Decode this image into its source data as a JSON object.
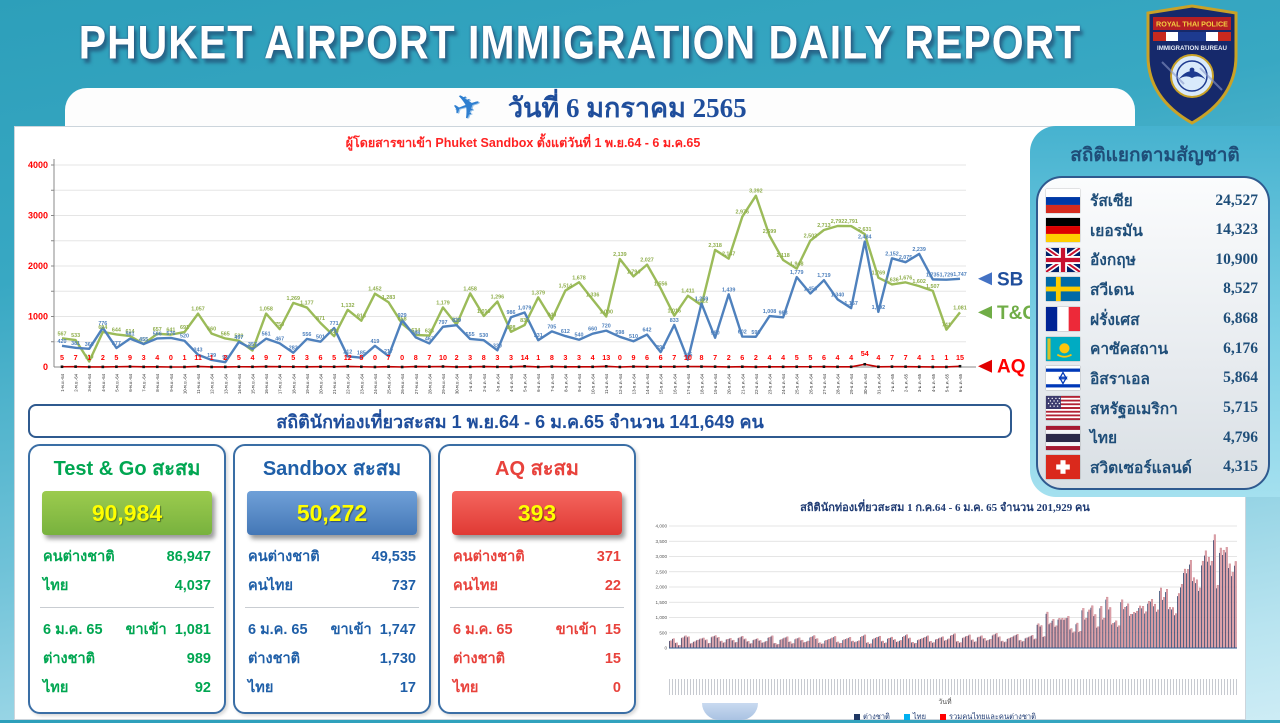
{
  "header": {
    "title": "PHUKET AIRPORT IMMIGRATION DAILY REPORT",
    "badge": {
      "line1": "ROYAL THAI POLICE",
      "line2": "IMMIGRATION BUREAU"
    }
  },
  "date_banner": {
    "text": "วันที่ 6 มกราคม 2565"
  },
  "chart_data": [
    {
      "type": "line",
      "title": "ผู้โดยสารขาเข้า Phuket Sandbox ตั้งแต่วันที่ 1 พ.ย.64 - 6 ม.ค.65",
      "ylim": [
        0,
        4000
      ],
      "yticks": [
        0,
        1000,
        2000,
        3000,
        4000
      ],
      "grid": true,
      "legend_position": "right",
      "x": [
        "1-พ.ย.-64",
        "2-พ.ย.-64",
        "3-พ.ย.-64",
        "4-พ.ย.-64",
        "5-พ.ย.-64",
        "6-พ.ย.-64",
        "7-พ.ย.-64",
        "8-พ.ย.-64",
        "9-พ.ย.-64",
        "10-พ.ย.-64",
        "11-พ.ย.-64",
        "12-พ.ย.-64",
        "13-พ.ย.-64",
        "14-พ.ย.-64",
        "15-พ.ย.-64",
        "16-พ.ย.-64",
        "17-พ.ย.-64",
        "18-พ.ย.-64",
        "19-พ.ย.-64",
        "20-พ.ย.-64",
        "21-พ.ย.-64",
        "22-พ.ย.-64",
        "23-พ.ย.-64",
        "24-พ.ย.-64",
        "25-พ.ย.-64",
        "26-พ.ย.-64",
        "27-พ.ย.-64",
        "28-พ.ย.-64",
        "29-พ.ย.-64",
        "30-พ.ย.-64",
        "1-ธ.ค.-64",
        "2-ธ.ค.-64",
        "3-ธ.ค.-64",
        "4-ธ.ค.-64",
        "5-ธ.ค.-64",
        "6-ธ.ค.-64",
        "7-ธ.ค.-64",
        "8-ธ.ค.-64",
        "9-ธ.ค.-64",
        "10-ธ.ค.-64",
        "11-ธ.ค.-64",
        "12-ธ.ค.-64",
        "13-ธ.ค.-64",
        "14-ธ.ค.-64",
        "15-ธ.ค.-64",
        "16-ธ.ค.-64",
        "17-ธ.ค.-64",
        "18-ธ.ค.-64",
        "19-ธ.ค.-64",
        "20-ธ.ค.-64",
        "21-ธ.ค.-64",
        "22-ธ.ค.-64",
        "23-ธ.ค.-64",
        "24-ธ.ค.-64",
        "25-ธ.ค.-64",
        "26-ธ.ค.-64",
        "27-ธ.ค.-64",
        "28-ธ.ค.-64",
        "29-ธ.ค.-64",
        "30-ธ.ค.-64",
        "31-ธ.ค.-64",
        "1-ม.ค.-65",
        "2-ม.ค.-65",
        "3-ม.ค.-65",
        "4-ม.ค.-65",
        "5-ม.ค.-65",
        "6-ม.ค.-65"
      ],
      "series": [
        {
          "name": "T&G",
          "color": "#9BBB59",
          "label_color": "#8fae4c",
          "values": [
            567,
            533,
            110,
            694,
            644,
            614,
            455,
            657,
            641,
            691,
            1057,
            660,
            565,
            520,
            326,
            1058,
            750,
            1269,
            1177,
            871,
            610,
            1132,
            916,
            1452,
            1283,
            858,
            634,
            623,
            1179,
            839,
            1458,
            1010,
            1296,
            698,
            830,
            1379,
            940,
            1514,
            1678,
            1336,
            1000,
            2139,
            1794,
            2027,
            1556,
            1016,
            1411,
            1222,
            2318,
            2147,
            2976,
            3392,
            2599,
            2118,
            1948,
            2502,
            2713,
            2792,
            2791,
            2631,
            1769,
            1636,
            1676,
            1602,
            1507,
            741,
            1081
          ]
        },
        {
          "name": "SB",
          "color": "#4F81BD",
          "label_color": "#4F81BD",
          "values": [
            420,
            381,
            360,
            776,
            377,
            561,
            455,
            566,
            576,
            520,
            243,
            139,
            96,
            497,
            357,
            561,
            467,
            283,
            556,
            501,
            771,
            212,
            185,
            419,
            217,
            929,
            586,
            467,
            797,
            829,
            555,
            530,
            330,
            986,
            1079,
            531,
            705,
            612,
            540,
            660,
            720,
            598,
            510,
            642,
            295,
            833,
            145,
            1259,
            580,
            1439,
            602,
            599,
            1008,
            983,
            1779,
            1456,
            1719,
            1340,
            1167,
            2484,
            1092,
            2152,
            2075,
            2239,
            1735,
            1729,
            1747
          ]
        },
        {
          "name": "AQ",
          "color": "#C00000",
          "label_color": "#FF0000",
          "values": [
            5,
            7,
            1,
            2,
            5,
            9,
            3,
            4,
            0,
            1,
            11,
            1,
            2,
            5,
            4,
            9,
            7,
            5,
            3,
            6,
            5,
            12,
            5,
            0,
            7,
            0,
            8,
            7,
            10,
            2,
            3,
            8,
            3,
            3,
            14,
            1,
            8,
            3,
            3,
            4,
            13,
            0,
            9,
            6,
            6,
            7,
            10,
            8,
            7,
            2,
            6,
            2,
            4,
            4,
            5,
            5,
            6,
            4,
            4,
            54,
            4,
            7,
            7,
            4,
            1,
            1,
            15
          ]
        }
      ]
    },
    {
      "type": "bar",
      "title": "สถิตินักท่องเที่ยวสะสม 1 ก.ค.64 - 6 ม.ค. 65 จำนวน  201,929 คน",
      "xlabel": "วันที่",
      "ylim": [
        0,
        4000
      ],
      "yticks": [
        0,
        500,
        1000,
        1500,
        2000,
        2500,
        3000,
        3500,
        4000
      ],
      "legend": [
        "ต่างชาติ",
        "ไทย",
        "รวมคนไทยและคนต่างชาติ"
      ],
      "legend_colors": [
        "#1F3864",
        "#00B0F0",
        "#FF0000"
      ],
      "bar_color": "#dca3ab",
      "sub_bar_color": "#1F3864",
      "values": [
        240,
        310,
        170,
        90,
        340,
        400,
        370,
        150,
        210,
        260,
        300,
        330,
        270,
        160,
        370,
        410,
        350,
        230,
        180,
        290,
        320,
        260,
        190,
        340,
        390,
        300,
        220,
        150,
        270,
        310,
        250,
        180,
        220,
        350,
        400,
        160,
        120,
        280,
        330,
        370,
        210,
        150,
        300,
        340,
        260,
        190,
        230,
        360,
        410,
        310,
        170,
        140,
        250,
        290,
        330,
        380,
        200,
        160,
        270,
        310,
        350,
        230,
        200,
        240,
        380,
        430,
        180,
        140,
        300,
        350,
        390,
        230,
        170,
        320,
        360,
        280,
        210,
        250,
        380,
        440,
        330,
        190,
        160,
        270,
        310,
        350,
        400,
        220,
        180,
        290,
        330,
        370,
        250,
        300,
        420,
        470,
        220,
        180,
        340,
        390,
        430,
        270,
        210,
        360,
        400,
        320,
        250,
        290,
        430,
        480,
        370,
        230,
        200,
        310,
        350,
        400,
        450,
        260,
        220,
        330,
        370,
        420,
        300,
        800,
        740,
        380,
        1180,
        820,
        940,
        730,
        980,
        980,
        970,
        1040,
        640,
        530,
        820,
        550,
        1300,
        980,
        1250,
        1390,
        1100,
        700,
        1370,
        980,
        1670,
        1330,
        810,
        890,
        730,
        1580,
        1340,
        1450,
        1110,
        1170,
        1210,
        1380,
        1370,
        1190,
        1530,
        1600,
        1440,
        1250,
        1970,
        1660,
        1930,
        1340,
        1330,
        1130,
        1790,
        2090,
        2590,
        2580,
        2880,
        2310,
        2240,
        1970,
        2850,
        3190,
        2980,
        2850,
        3720,
        2060,
        3280,
        3210,
        3300,
        2760,
        2480,
        2840
      ]
    }
  ],
  "nationality": {
    "title": "สถิติแยกตามสัญชาติ",
    "items": [
      {
        "flag": "russia",
        "label": "รัสเซีย",
        "value": "24,527"
      },
      {
        "flag": "germany",
        "label": "เยอรมัน",
        "value": "14,323"
      },
      {
        "flag": "uk",
        "label": "อังกฤษ",
        "value": "10,900"
      },
      {
        "flag": "sweden",
        "label": "สวีเดน",
        "value": "8,527"
      },
      {
        "flag": "france",
        "label": "ฝรั่งเศส",
        "value": "6,868"
      },
      {
        "flag": "kazakhstan",
        "label": "คาซัคสถาน",
        "value": "6,176"
      },
      {
        "flag": "israel",
        "label": "อิสราเอล",
        "value": "5,864"
      },
      {
        "flag": "usa",
        "label": "สหรัฐอเมริกา",
        "value": "5,715"
      },
      {
        "flag": "thailand",
        "label": "ไทย",
        "value": "4,796"
      },
      {
        "flag": "switzerland",
        "label": "สวิตเซอร์แลนด์",
        "value": "4,315"
      }
    ]
  },
  "summary_banner": {
    "text": "สถิตินักท่องเที่ยวสะสม 1 พ.ย.64 - 6 ม.ค.65  จำนวน  141,649 คน"
  },
  "cards": [
    {
      "title": "Test & Go สะสม",
      "accent": "#00A651",
      "box_from": "#9ccb4e",
      "box_to": "#78b23e",
      "total": "90,984",
      "rows": [
        {
          "label": "คนต่างชาติ",
          "value": "86,947"
        },
        {
          "label": "ไทย",
          "value": "4,037"
        }
      ],
      "daily": {
        "date": "6 ม.ค. 65",
        "arrive_label": "ขาเข้า",
        "total": "1,081",
        "rows": [
          {
            "label": "ต่างชาติ",
            "value": "989"
          },
          {
            "label": "ไทย",
            "value": "92"
          }
        ]
      }
    },
    {
      "title": "Sandbox สะสม",
      "accent": "#1F5FA8",
      "box_from": "#6fa0d8",
      "box_to": "#4477b6",
      "total": "50,272",
      "rows": [
        {
          "label": "คนต่างชาติ",
          "value": "49,535"
        },
        {
          "label": "คนไทย",
          "value": "737"
        }
      ],
      "daily": {
        "date": "6 ม.ค. 65",
        "arrive_label": "ขาเข้า",
        "total": "1,747",
        "rows": [
          {
            "label": "ต่างชาติ",
            "value": "1,730"
          },
          {
            "label": "ไทย",
            "value": "17"
          }
        ]
      }
    },
    {
      "title": "AQ สะสม",
      "accent": "#E8423C",
      "box_from": "#f4665e",
      "box_to": "#e03a34",
      "total": "393",
      "rows": [
        {
          "label": "คนต่างชาติ",
          "value": "371"
        },
        {
          "label": "คนไทย",
          "value": "22"
        }
      ],
      "daily": {
        "date": "6 ม.ค. 65",
        "arrive_label": "ขาเข้า",
        "total": "15",
        "rows": [
          {
            "label": "ต่างชาติ",
            "value": "15"
          },
          {
            "label": "ไทย",
            "value": "0"
          }
        ]
      }
    }
  ],
  "colors": {
    "navy": "#1F4E79",
    "chart_title_red": "#FF2222",
    "sb_blue": "#4F81BD",
    "tg_green": "#9BBB59",
    "aq_red": "#C00000"
  }
}
